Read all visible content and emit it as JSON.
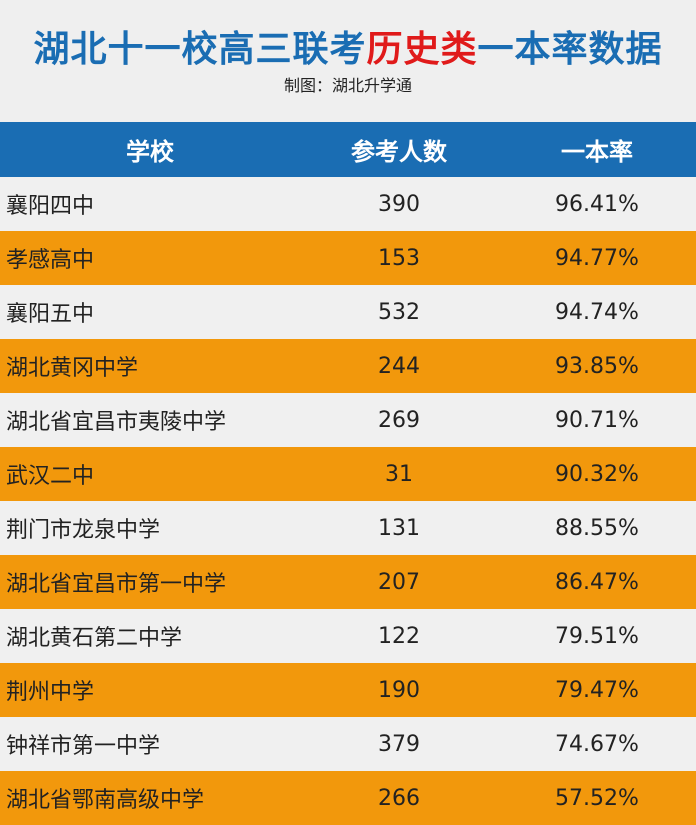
{
  "header": {
    "title_part1": "湖北十一校高三联考",
    "title_highlight": "历史类",
    "title_part2": "一本率数据",
    "credit": "制图：湖北升学通"
  },
  "table": {
    "columns": [
      "学校",
      "参考人数",
      "一本率"
    ],
    "rows": [
      {
        "school": "襄阳四中",
        "count": "390",
        "rate": "96.41%"
      },
      {
        "school": "孝感高中",
        "count": "153",
        "rate": "94.77%"
      },
      {
        "school": "襄阳五中",
        "count": "532",
        "rate": "94.74%"
      },
      {
        "school": "湖北黄冈中学",
        "count": "244",
        "rate": "93.85%"
      },
      {
        "school": "湖北省宜昌市夷陵中学",
        "count": "269",
        "rate": "90.71%"
      },
      {
        "school": "武汉二中",
        "count": "31",
        "rate": "90.32%"
      },
      {
        "school": "荆门市龙泉中学",
        "count": "131",
        "rate": "88.55%"
      },
      {
        "school": "湖北省宜昌市第一中学",
        "count": "207",
        "rate": "86.47%"
      },
      {
        "school": "湖北黄石第二中学",
        "count": "122",
        "rate": "79.51%"
      },
      {
        "school": "荆州中学",
        "count": "190",
        "rate": "79.47%"
      },
      {
        "school": "钟祥市第一中学",
        "count": "379",
        "rate": "74.67%"
      },
      {
        "school": "湖北省鄂南高级中学",
        "count": "266",
        "rate": "57.52%"
      }
    ]
  },
  "colors": {
    "title_blue": "#1a6db3",
    "title_red": "#e01a1a",
    "header_row": "#1a6db3",
    "row_light": "#f0f0f0",
    "row_orange": "#f2980c"
  }
}
